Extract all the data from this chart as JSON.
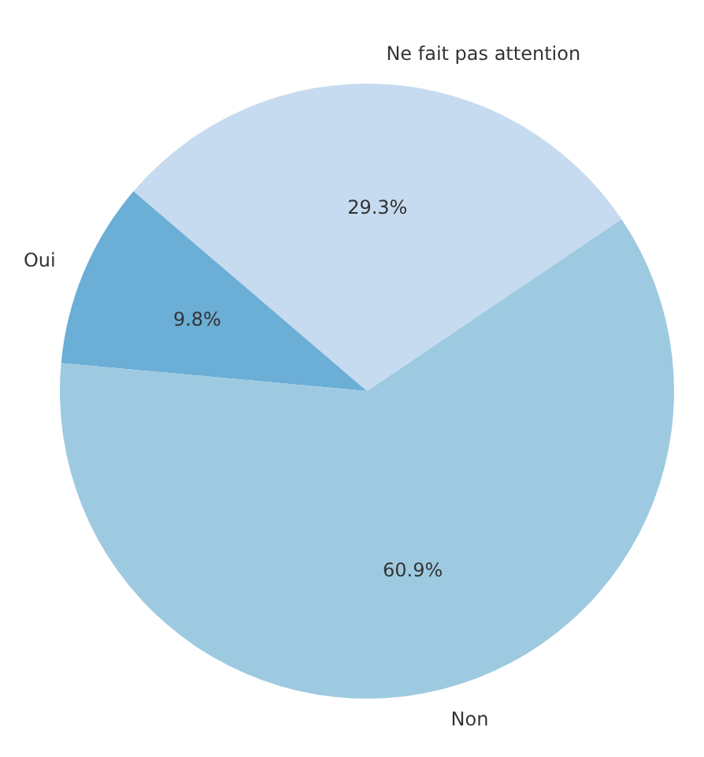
{
  "chart_data": {
    "type": "pie",
    "categories": [
      "Ne fait pas attention",
      "Oui",
      "Non"
    ],
    "values": [
      29.3,
      9.8,
      60.9
    ],
    "colors": [
      "#c6dbef",
      "#6baed6",
      "#9ecae1"
    ],
    "value_labels": [
      "29.3%",
      "9.8%",
      "60.9%"
    ]
  }
}
